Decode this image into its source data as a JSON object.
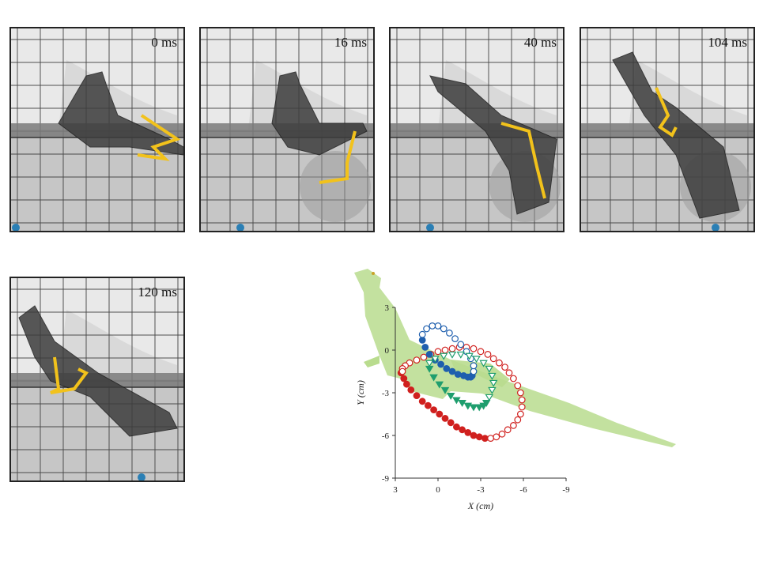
{
  "frames": [
    {
      "time": "0 ms"
    },
    {
      "time": "16 ms"
    },
    {
      "time": "40 ms"
    },
    {
      "time": "104 ms"
    },
    {
      "time": "120 ms"
    }
  ],
  "colors": {
    "limb_marker": "#f2c21b",
    "reference_dot": "#2a7fb5",
    "lizard_silhouette": "#b9dc8e",
    "series_red": "#d0201e",
    "series_blue": "#1f5fae",
    "series_green": "#1f9e6e"
  },
  "chart_data": {
    "type": "scatter",
    "xlabel": "X (cm)",
    "ylabel": "Y (cm)",
    "xlim": [
      3,
      -9
    ],
    "ylim": [
      -9,
      3
    ],
    "x_ticks": [
      "3",
      "0",
      "-3",
      "-6",
      "-9"
    ],
    "y_ticks": [
      "3",
      "0",
      "-3",
      "-6",
      "-9"
    ],
    "x_tick_values": [
      3,
      0,
      -3,
      -6,
      -9
    ],
    "y_tick_values": [
      3,
      0,
      -3,
      -6,
      -9
    ],
    "series": [
      {
        "marker": "circle-filled",
        "color": "#d0201e",
        "x": [
          2.6,
          2.4,
          2.2,
          1.9,
          1.5,
          1.1,
          0.7,
          0.3,
          -0.1,
          -0.5,
          -0.9,
          -1.3,
          -1.7,
          -2.1,
          -2.5,
          -2.9,
          -3.3
        ],
        "y": [
          -1.6,
          -2.0,
          -2.4,
          -2.8,
          -3.2,
          -3.6,
          -3.9,
          -4.2,
          -4.5,
          -4.8,
          -5.1,
          -5.4,
          -5.6,
          -5.8,
          -6.0,
          -6.1,
          -6.2
        ]
      },
      {
        "marker": "circle-open",
        "color": "#d0201e",
        "x": [
          -3.7,
          -4.1,
          -4.5,
          -4.9,
          -5.3,
          -5.6,
          -5.8,
          -5.9,
          -5.9,
          -5.8,
          -5.6,
          -5.3,
          -5.0,
          -4.7,
          -4.3,
          -3.9,
          -3.5,
          -3.0,
          -2.5,
          -2.0,
          -1.5,
          -1.0,
          -0.5,
          0,
          0.5,
          1.0,
          1.5,
          2.0,
          2.3,
          2.5,
          2.5
        ],
        "y": [
          -6.2,
          -6.1,
          -5.9,
          -5.6,
          -5.3,
          -4.9,
          -4.5,
          -4.0,
          -3.5,
          -3.0,
          -2.5,
          -2.0,
          -1.6,
          -1.2,
          -0.9,
          -0.6,
          -0.3,
          -0.1,
          0.1,
          0.2,
          0.2,
          0.1,
          0,
          -0.1,
          -0.3,
          -0.5,
          -0.7,
          -0.9,
          -1.1,
          -1.3,
          -1.5
        ]
      },
      {
        "marker": "circle-filled",
        "color": "#1f5fae",
        "x": [
          1.1,
          0.9,
          0.6,
          0.2,
          -0.2,
          -0.6,
          -1.0,
          -1.4,
          -1.8,
          -2.1,
          -2.3,
          -2.4
        ],
        "y": [
          0.7,
          0.2,
          -0.3,
          -0.7,
          -1.0,
          -1.3,
          -1.5,
          -1.7,
          -1.8,
          -1.9,
          -1.9,
          -1.8
        ]
      },
      {
        "marker": "circle-open",
        "color": "#1f5fae",
        "x": [
          -2.5,
          -2.5,
          -2.3,
          -2.0,
          -1.6,
          -1.2,
          -0.8,
          -0.4,
          0,
          0.4,
          0.8,
          1.1
        ],
        "y": [
          -1.5,
          -1.1,
          -0.6,
          -0.1,
          0.4,
          0.8,
          1.2,
          1.5,
          1.7,
          1.7,
          1.5,
          1.1
        ]
      },
      {
        "marker": "triangle-filled",
        "color": "#1f9e6e",
        "x": [
          0.6,
          0.3,
          -0.1,
          -0.5,
          -0.9,
          -1.3,
          -1.7,
          -2.1,
          -2.5,
          -2.9,
          -3.2,
          -3.4
        ],
        "y": [
          -1.3,
          -1.9,
          -2.4,
          -2.8,
          -3.2,
          -3.5,
          -3.7,
          -3.9,
          -4.0,
          -4.0,
          -3.9,
          -3.7
        ]
      },
      {
        "marker": "triangle-open",
        "color": "#1f9e6e",
        "x": [
          -3.6,
          -3.8,
          -3.9,
          -3.8,
          -3.6,
          -3.2,
          -2.7,
          -2.2,
          -1.6,
          -1.0,
          -0.4,
          0.2,
          0.6
        ],
        "y": [
          -3.3,
          -2.8,
          -2.3,
          -1.8,
          -1.3,
          -0.9,
          -0.6,
          -0.4,
          -0.3,
          -0.3,
          -0.4,
          -0.6,
          -0.9
        ]
      }
    ]
  }
}
